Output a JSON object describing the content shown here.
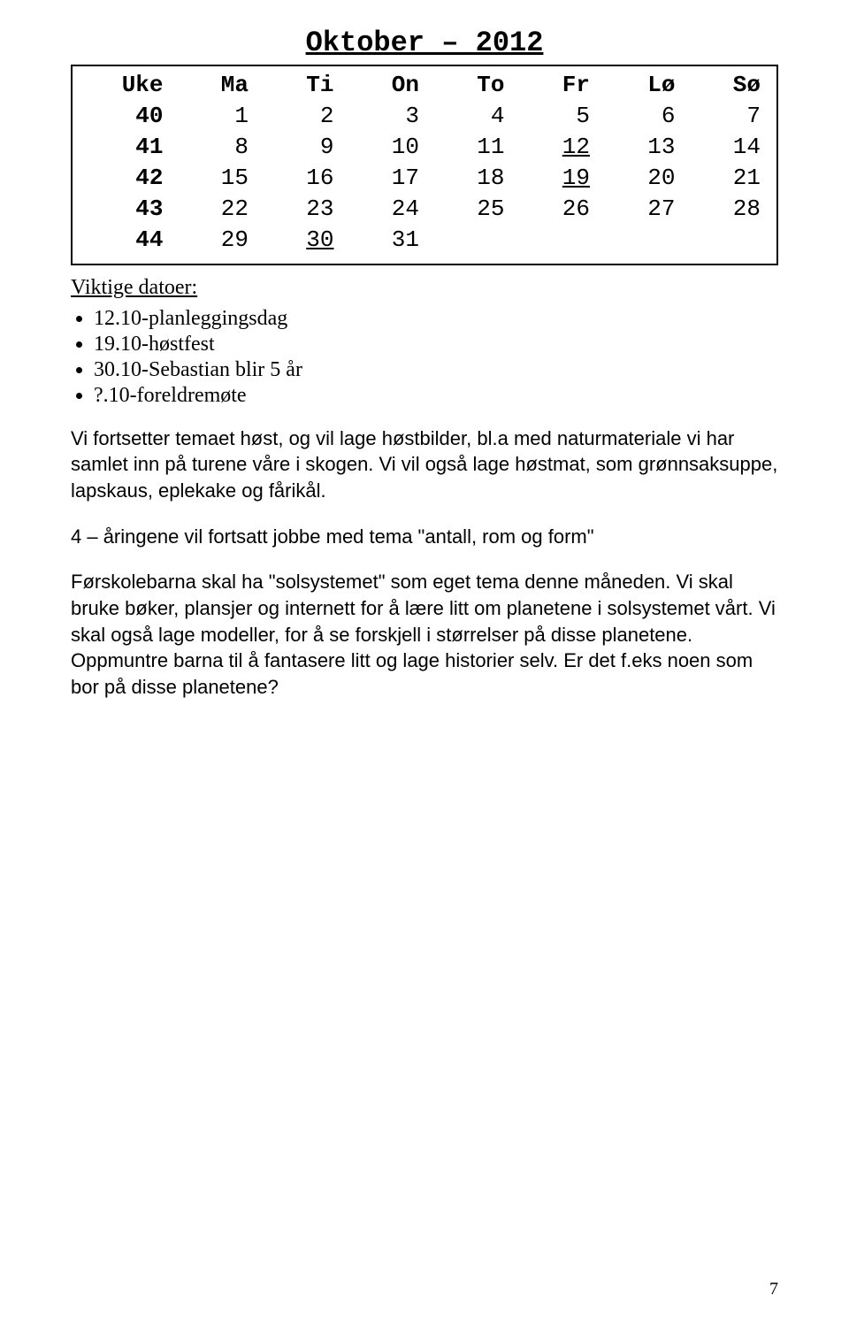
{
  "title": "Oktober – 2012",
  "calendar": {
    "headers": [
      "Uke",
      "Ma",
      "Ti",
      "On",
      "To",
      "Fr",
      "Lø",
      "Sø"
    ],
    "rows": [
      {
        "wk": "40",
        "days": [
          "1",
          "2",
          "3",
          "4",
          "5",
          "6",
          "7"
        ],
        "underline": []
      },
      {
        "wk": "41",
        "days": [
          "8",
          "9",
          "10",
          "11",
          "12",
          "13",
          "14"
        ],
        "underline": [
          4
        ]
      },
      {
        "wk": "42",
        "days": [
          "15",
          "16",
          "17",
          "18",
          "19",
          "20",
          "21"
        ],
        "underline": [
          4
        ]
      },
      {
        "wk": "43",
        "days": [
          "22",
          "23",
          "24",
          "25",
          "26",
          "27",
          "28"
        ],
        "underline": []
      },
      {
        "wk": "44",
        "days": [
          "29",
          "30",
          "31",
          "",
          "",
          "",
          ""
        ],
        "underline": [
          1
        ]
      }
    ]
  },
  "viktige_heading": "Viktige datoer:",
  "bullets": [
    "12.10-planleggingsdag",
    "19.10-høstfest",
    "30.10-Sebastian blir 5 år",
    "?.10-foreldremøte"
  ],
  "paragraphs": [
    "Vi fortsetter temaet høst, og vil lage høstbilder, bl.a med naturmateriale vi har samlet inn på turene våre i skogen. Vi vil også lage høstmat, som grønnsaksuppe, lapskaus, eplekake og fårikål.",
    "4 – åringene vil fortsatt jobbe med tema \"antall, rom og form\"",
    "Førskolebarna skal ha \"solsystemet\" som eget tema denne måneden. Vi skal bruke bøker, plansjer og internett for å lære litt om planetene i solsystemet vårt. Vi skal også lage modeller, for å se forskjell i størrelser på disse planetene. Oppmuntre barna til å fantasere litt og lage historier selv. Er det f.eks noen som bor på disse planetene?"
  ],
  "page_number": "7",
  "colors": {
    "background": "#ffffff",
    "text": "#000000",
    "border": "#000000"
  },
  "fonts": {
    "title_family": "Courier New",
    "calendar_family": "Courier New",
    "bullets_family": "Times New Roman",
    "body_family": "Comic Sans MS",
    "title_size": 32,
    "calendar_size": 26,
    "bullets_size": 24,
    "body_size": 22
  }
}
